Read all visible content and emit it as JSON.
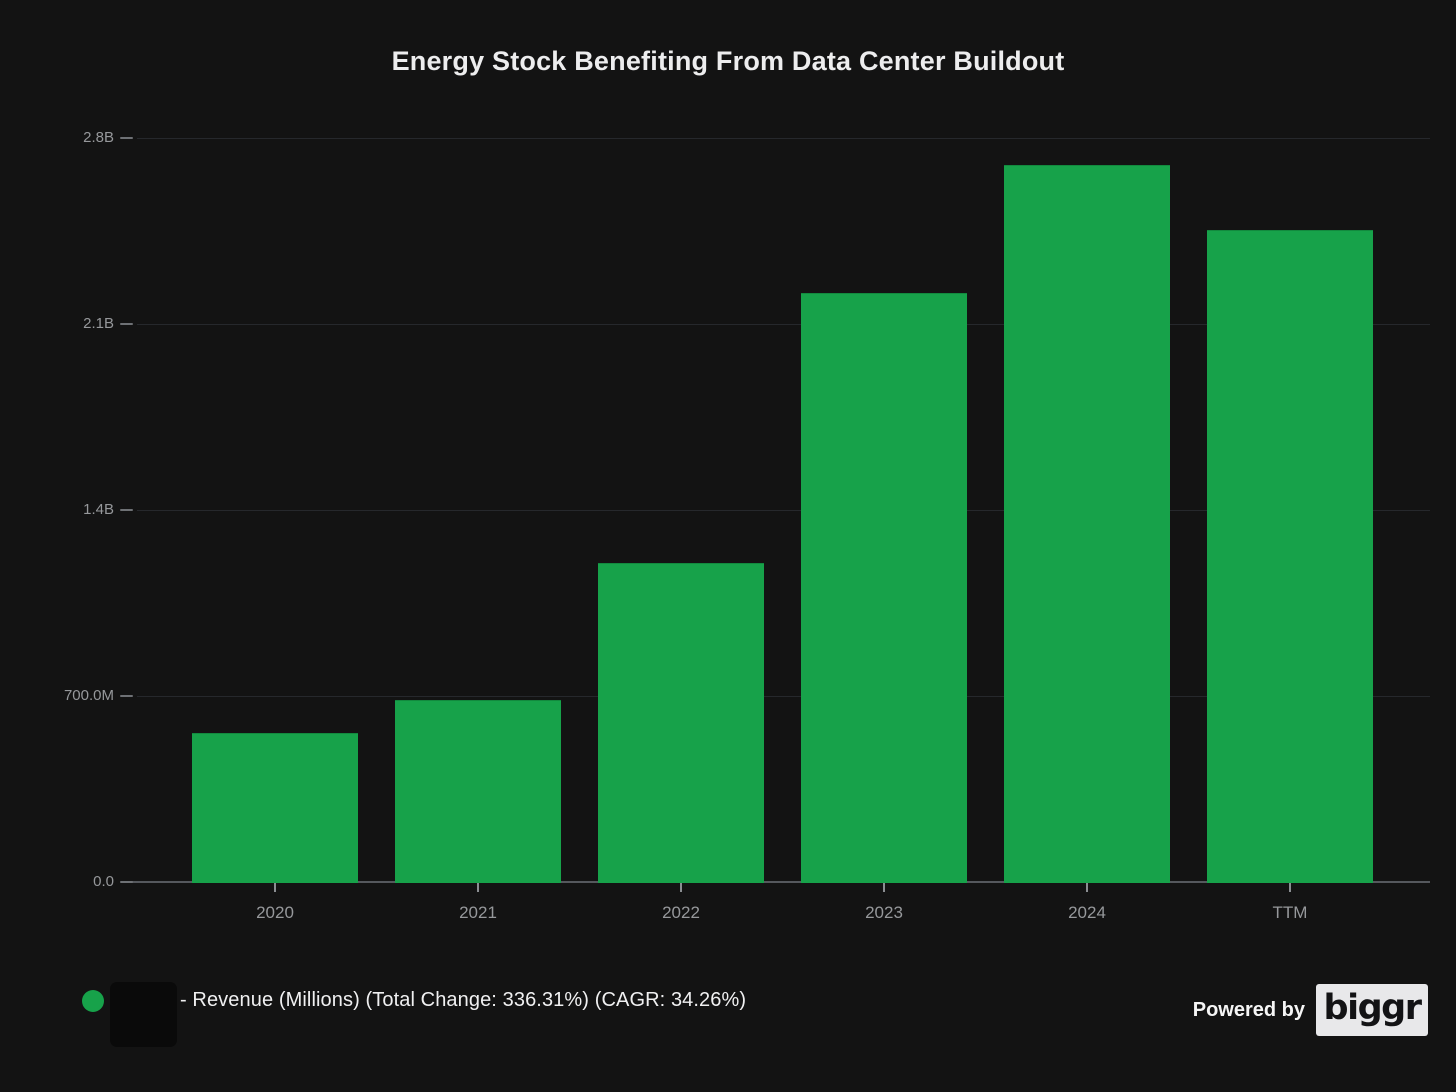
{
  "title": "Energy Stock Benefiting From Data Center Buildout",
  "chart_data": {
    "type": "bar",
    "title": "Energy Stock Benefiting From Data Center Buildout",
    "categories": [
      "2020",
      "2021",
      "2022",
      "2023",
      "2024",
      "TTM"
    ],
    "series": [
      {
        "name": "Revenue (Millions)",
        "values": [
          562,
          685,
          1200,
          2217,
          2700,
          2452
        ]
      }
    ],
    "unit": "USD millions",
    "xlabel": "",
    "ylabel": "",
    "ylim": [
      0,
      2800
    ],
    "yticks": [
      {
        "value": 0,
        "label": "0.0"
      },
      {
        "value": 700,
        "label": "700.0M"
      },
      {
        "value": 1400,
        "label": "1.4B"
      },
      {
        "value": 2100,
        "label": "2.1B"
      },
      {
        "value": 2800,
        "label": "2.8B"
      }
    ],
    "grid": "horizontal",
    "legend_position": "bottom-left",
    "annotations": {
      "total_change_pct": "336.31%",
      "cagr_pct": "34.26%"
    }
  },
  "legend": {
    "marker_color": "#17a24a",
    "label": "- Revenue (Millions) (Total Change: 336.31%) (CAGR: 34.26%)"
  },
  "footer": {
    "powered_by": "Powered by",
    "brand": "biggr"
  },
  "colors": {
    "background": "#131313",
    "bar": "#17a24a",
    "gridline": "#26282c",
    "axis_line": "#55585d",
    "tick_label": "#96989b",
    "title_text": "#ededee",
    "legend_text": "#f0f0f1",
    "badge_background": "#e8e8ea",
    "badge_text": "#131315",
    "redaction_box": "#0a0a0a"
  }
}
